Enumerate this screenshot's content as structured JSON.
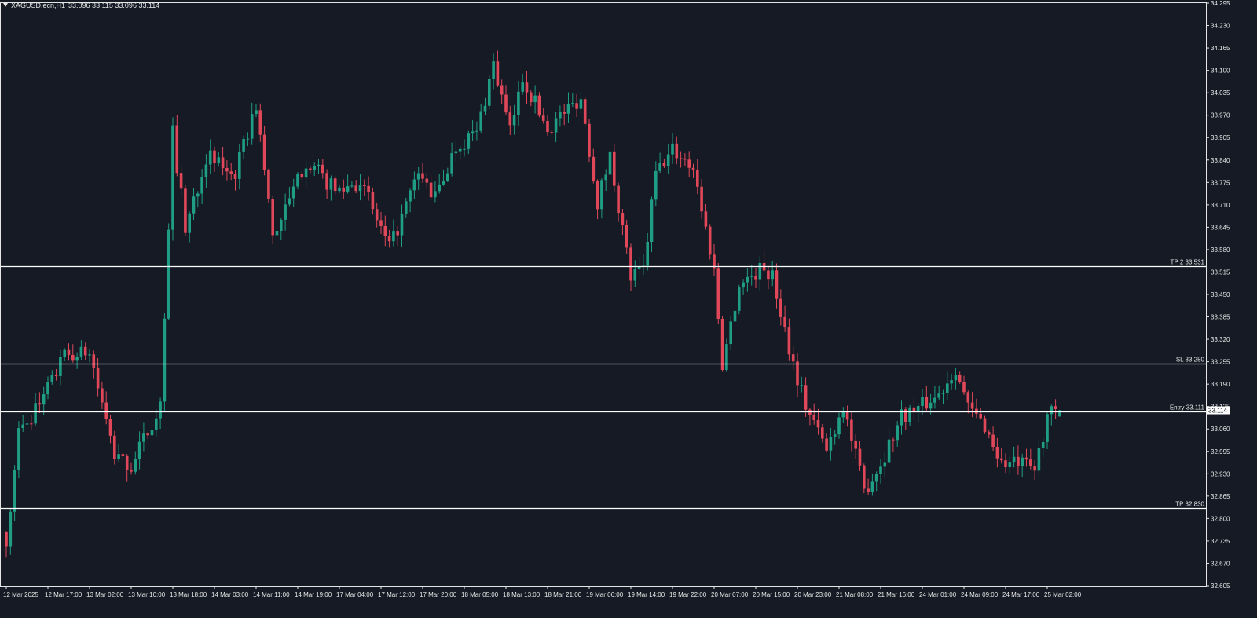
{
  "header": {
    "symbol_timeframe": "XAGUSD.ecn,H1",
    "ohlc_values": "33.096 33.115 33.096 33.114"
  },
  "colors": {
    "background": "#151a24",
    "bullish": "#1f9e85",
    "bearish": "#e0485a",
    "axis": "#e6e6e6",
    "level_line": "#ffffff",
    "current_price_box": "#ffffff"
  },
  "chart_data": {
    "type": "candlestick",
    "symbol": "XAGUSD.ecn",
    "timeframe": "H1",
    "grid": false,
    "y_range": [
      32.605,
      34.295
    ],
    "y_ticks": [
      "34.295",
      "34.230",
      "34.165",
      "34.100",
      "34.035",
      "33.970",
      "33.905",
      "33.840",
      "33.775",
      "33.710",
      "33.645",
      "33.580",
      "33.515",
      "33.450",
      "33.385",
      "33.320",
      "33.255",
      "33.190",
      "33.125",
      "33.060",
      "32.995",
      "32.930",
      "32.865",
      "32.800",
      "32.735",
      "32.670",
      "32.605"
    ],
    "x_ticks": [
      {
        "label": "12 Mar 2025",
        "bar": 0
      },
      {
        "label": "12 Mar 17:00",
        "bar": 10
      },
      {
        "label": "13 Mar 02:00",
        "bar": 20
      },
      {
        "label": "13 Mar 10:00",
        "bar": 30
      },
      {
        "label": "13 Mar 18:00",
        "bar": 40
      },
      {
        "label": "14 Mar 03:00",
        "bar": 50
      },
      {
        "label": "14 Mar 11:00",
        "bar": 60
      },
      {
        "label": "14 Mar 19:00",
        "bar": 70
      },
      {
        "label": "17 Mar 04:00",
        "bar": 80
      },
      {
        "label": "17 Mar 12:00",
        "bar": 90
      },
      {
        "label": "17 Mar 20:00",
        "bar": 100
      },
      {
        "label": "18 Mar 05:00",
        "bar": 110
      },
      {
        "label": "18 Mar 13:00",
        "bar": 120
      },
      {
        "label": "18 Mar 21:00",
        "bar": 130
      },
      {
        "label": "19 Mar 06:00",
        "bar": 140
      },
      {
        "label": "19 Mar 14:00",
        "bar": 150
      },
      {
        "label": "19 Mar 22:00",
        "bar": 160
      },
      {
        "label": "20 Mar 07:00",
        "bar": 170
      },
      {
        "label": "20 Mar 15:00",
        "bar": 180
      },
      {
        "label": "20 Mar 23:00",
        "bar": 190
      },
      {
        "label": "21 Mar 08:00",
        "bar": 200
      },
      {
        "label": "21 Mar 16:00",
        "bar": 210
      },
      {
        "label": "24 Mar 01:00",
        "bar": 220
      },
      {
        "label": "24 Mar 09:00",
        "bar": 230
      },
      {
        "label": "24 Mar 17:00",
        "bar": 240
      },
      {
        "label": "25 Mar 02:00",
        "bar": 250
      }
    ],
    "levels": [
      {
        "label": "TP 2 33.531",
        "value": 33.531
      },
      {
        "label": "SL 33.250",
        "value": 33.25
      },
      {
        "label": "Entry 33.111",
        "value": 33.111
      },
      {
        "label": "TP 32.830",
        "value": 32.83
      }
    ],
    "current_price": "33.114",
    "waypoints": [
      [
        0,
        32.72
      ],
      [
        3,
        33.05
      ],
      [
        8,
        33.13
      ],
      [
        14,
        33.27
      ],
      [
        20,
        33.28
      ],
      [
        26,
        32.98
      ],
      [
        30,
        32.95
      ],
      [
        37,
        33.13
      ],
      [
        40,
        33.92
      ],
      [
        43,
        33.64
      ],
      [
        48,
        33.85
      ],
      [
        55,
        33.8
      ],
      [
        60,
        34.0
      ],
      [
        64,
        33.62
      ],
      [
        68,
        33.72
      ],
      [
        72,
        33.84
      ],
      [
        79,
        33.75
      ],
      [
        85,
        33.78
      ],
      [
        92,
        33.58
      ],
      [
        99,
        33.8
      ],
      [
        103,
        33.73
      ],
      [
        108,
        33.88
      ],
      [
        113,
        33.92
      ],
      [
        117,
        34.12
      ],
      [
        121,
        33.92
      ],
      [
        124,
        34.08
      ],
      [
        130,
        33.93
      ],
      [
        134,
        33.98
      ],
      [
        138,
        34.02
      ],
      [
        142,
        33.72
      ],
      [
        145,
        33.85
      ],
      [
        150,
        33.5
      ],
      [
        153,
        33.52
      ],
      [
        156,
        33.8
      ],
      [
        160,
        33.87
      ],
      [
        165,
        33.82
      ],
      [
        170,
        33.52
      ],
      [
        172,
        33.25
      ],
      [
        176,
        33.48
      ],
      [
        182,
        33.53
      ],
      [
        184,
        33.5
      ],
      [
        189,
        33.25
      ],
      [
        192,
        33.13
      ],
      [
        197,
        33.0
      ],
      [
        201,
        33.13
      ],
      [
        206,
        32.88
      ],
      [
        210,
        32.96
      ],
      [
        215,
        33.1
      ],
      [
        219,
        33.12
      ],
      [
        224,
        33.16
      ],
      [
        228,
        33.24
      ],
      [
        231,
        33.12
      ],
      [
        235,
        33.07
      ],
      [
        239,
        32.96
      ],
      [
        243,
        32.96
      ],
      [
        247,
        32.94
      ],
      [
        250,
        33.1
      ],
      [
        253,
        33.114
      ]
    ]
  }
}
